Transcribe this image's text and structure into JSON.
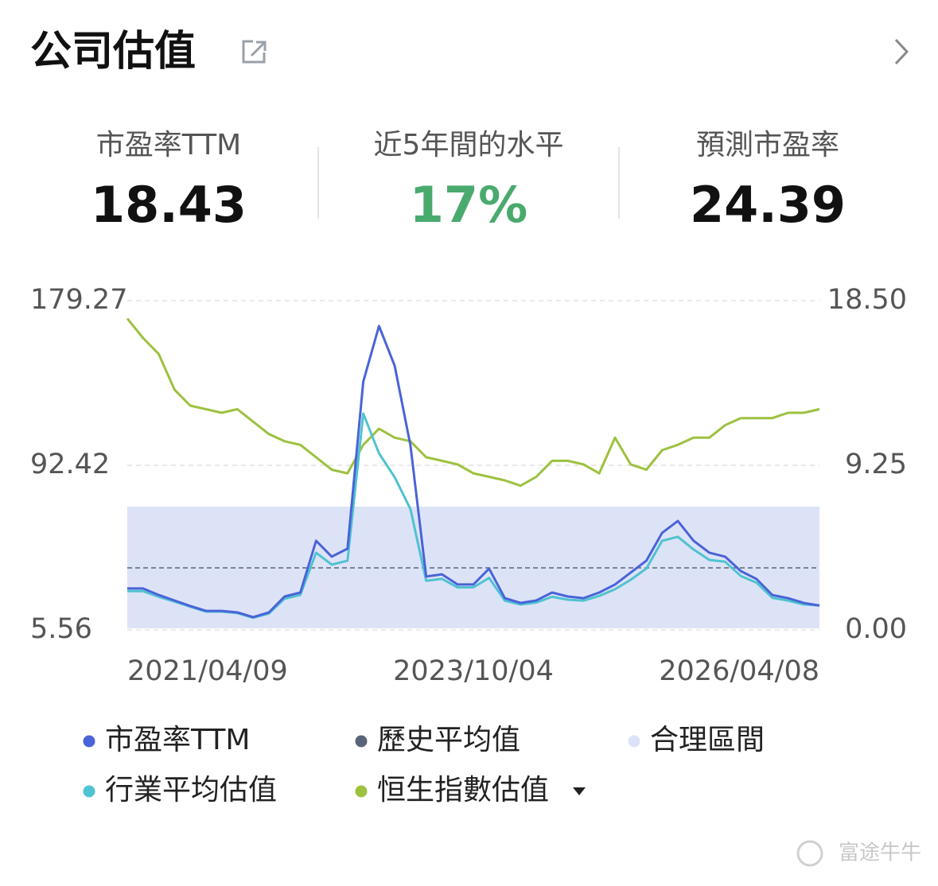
{
  "header": {
    "title": "公司估值"
  },
  "stats": [
    {
      "label": "市盈率TTM",
      "value": "18.43"
    },
    {
      "label": "近5年間的水平",
      "value": "17%"
    },
    {
      "label": "預測市盈率",
      "value": "24.39"
    }
  ],
  "chart_data": {
    "type": "line",
    "ylim": [
      5.56,
      179.27
    ],
    "yticks": [
      179.27,
      92.42,
      5.56
    ],
    "y2lim": [
      0,
      18.5
    ],
    "y2ticks": [
      {
        "value": 18.5,
        "label": "18.50"
      },
      9.25,
      {
        "value": 0,
        "label": "0.00"
      }
    ],
    "grid": true,
    "categories": [
      "2021/04/09",
      null,
      null,
      null,
      null,
      null,
      null,
      null,
      null,
      null,
      null,
      null,
      null,
      null,
      null,
      null,
      null,
      null,
      null,
      null,
      null,
      null,
      "2023/10/04",
      null,
      null,
      null,
      null,
      null,
      null,
      null,
      null,
      null,
      null,
      null,
      null,
      null,
      null,
      null,
      null,
      null,
      null,
      null,
      null,
      null,
      "2026/04/08"
    ],
    "series": [
      {
        "name": "市盈率TTM",
        "color": "#4a63d8",
        "axis": "y",
        "values": [
          27.4,
          27.4,
          24.0,
          21.1,
          18.2,
          15.6,
          15.6,
          14.8,
          12.3,
          14.8,
          23.2,
          25.3,
          52.6,
          44.2,
          48.4,
          136.5,
          165.9,
          144.9,
          102.9,
          33.7,
          34.9,
          29.5,
          29.5,
          37.9,
          22.3,
          19.8,
          21.1,
          25.3,
          23.2,
          22.3,
          25.3,
          29.5,
          35.8,
          42.1,
          56.8,
          63.0,
          52.6,
          46.3,
          44.2,
          36.6,
          32.4,
          24.0,
          22.3,
          19.8,
          18.4
        ]
      },
      {
        "name": "行業平均估值",
        "color": "#4fc3d0",
        "axis": "y",
        "values": [
          26,
          26,
          23,
          20.5,
          17.8,
          15.2,
          15.2,
          14.4,
          12.0,
          14.2,
          22,
          24,
          46.3,
          40,
          42.1,
          119.7,
          98.7,
          86.1,
          69.3,
          31.5,
          32.5,
          28,
          28,
          33,
          21,
          19,
          20,
          23,
          21.5,
          21,
          23.5,
          27,
          32,
          38,
          52.6,
          54.7,
          48,
          42.5,
          41.5,
          34,
          30.5,
          22.5,
          21,
          19,
          18.5
        ]
      },
      {
        "name": "恒生指數估值",
        "color": "#9dc13f",
        "axis": "y2",
        "values": [
          17.5,
          16.4,
          15.5,
          13.5,
          12.6,
          12.4,
          12.2,
          12.4,
          11.7,
          11.0,
          10.6,
          10.4,
          9.7,
          9.0,
          8.8,
          10.4,
          11.3,
          10.8,
          10.6,
          9.7,
          9.5,
          9.3,
          8.8,
          8.6,
          8.4,
          8.1,
          8.6,
          9.5,
          9.5,
          9.3,
          8.8,
          10.8,
          9.3,
          9.0,
          10.1,
          10.4,
          10.8,
          10.8,
          11.5,
          11.9,
          11.9,
          11.9,
          12.2,
          12.2,
          12.4
        ]
      }
    ],
    "reference_lines": [
      {
        "name": "歷史平均值",
        "color": "#5a6478",
        "value": 38.3
      }
    ],
    "bands": [
      {
        "name": "合理區間",
        "color": "#dde3f7",
        "range": [
          6.4,
          70.6
        ]
      }
    ]
  },
  "watermark": "富途牛牛"
}
